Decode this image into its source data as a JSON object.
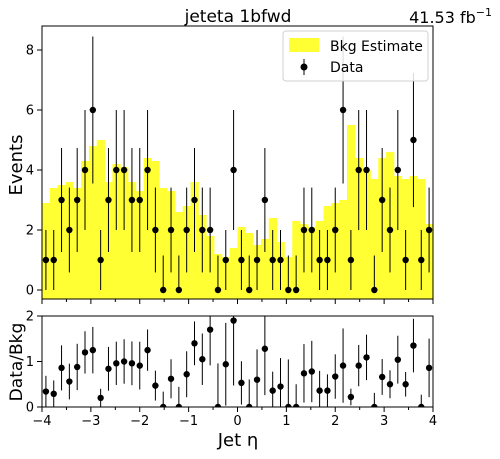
{
  "chart_data": [
    {
      "type": "bar",
      "panel": "main",
      "title": "jeteta  1bfwd",
      "lumi_label": "41.53 fb",
      "lumi_label_sup": "−1",
      "ylabel": "Events",
      "xlim": [
        -4,
        4
      ],
      "ylim": [
        -0.3,
        8.8
      ],
      "yticks": [
        "0",
        "2",
        "4",
        "6",
        "8"
      ],
      "yticks_values": [
        0,
        2,
        4,
        6,
        8
      ],
      "legend": {
        "placement": "top-right",
        "entries": [
          "Bkg Estimate",
          "Data"
        ]
      },
      "colors": {
        "bkg": "#ffff33",
        "data": "#000000"
      },
      "series": [
        {
          "name": "Bkg Estimate",
          "style": "step-filled",
          "bin_edges": [
            -4.0,
            -3.84,
            -3.68,
            -3.52,
            -3.36,
            -3.2,
            -3.04,
            -2.88,
            -2.72,
            -2.56,
            -2.4,
            -2.24,
            -2.08,
            -1.92,
            -1.76,
            -1.6,
            -1.44,
            -1.28,
            -1.12,
            -0.96,
            -0.8,
            -0.64,
            -0.48,
            -0.32,
            -0.16,
            0.0,
            0.16,
            0.32,
            0.48,
            0.64,
            0.8,
            0.96,
            1.12,
            1.28,
            1.44,
            1.6,
            1.76,
            1.92,
            2.08,
            2.24,
            2.4,
            2.56,
            2.72,
            2.88,
            3.04,
            3.2,
            3.36,
            3.52,
            3.68,
            3.84,
            4.0
          ],
          "values": [
            2.9,
            3.4,
            3.5,
            3.6,
            3.4,
            4.3,
            4.8,
            5.0,
            3.6,
            4.2,
            4.1,
            3.6,
            3.3,
            4.4,
            4.3,
            3.4,
            3.3,
            2.6,
            2.8,
            3.6,
            2.5,
            1.8,
            1.2,
            1.1,
            1.4,
            2.1,
            1.9,
            1.5,
            1.7,
            2.4,
            1.6,
            1.1,
            2.3,
            2.2,
            2.1,
            2.3,
            2.8,
            2.9,
            3.0,
            5.5,
            4.4,
            4.0,
            3.7,
            4.4,
            4.6,
            3.8,
            3.7,
            3.8,
            3.7,
            2.2
          ]
        },
        {
          "name": "Data",
          "style": "errorbar",
          "x": [
            -3.92,
            -3.76,
            -3.6,
            -3.44,
            -3.28,
            -3.12,
            -2.96,
            -2.8,
            -2.64,
            -2.48,
            -2.32,
            -2.16,
            -2.0,
            -1.84,
            -1.68,
            -1.52,
            -1.36,
            -1.2,
            -1.04,
            -0.88,
            -0.72,
            -0.56,
            -0.4,
            -0.24,
            -0.08,
            0.08,
            0.24,
            0.4,
            0.56,
            0.72,
            0.88,
            1.04,
            1.2,
            1.36,
            1.52,
            1.68,
            1.84,
            2.0,
            2.16,
            2.32,
            2.48,
            2.64,
            2.8,
            2.96,
            3.12,
            3.28,
            3.44,
            3.6,
            3.76,
            3.92
          ],
          "y": [
            1,
            1,
            3,
            2,
            3,
            4,
            6,
            1,
            3,
            4,
            4,
            3,
            3,
            4,
            2,
            0,
            2,
            0,
            2,
            3,
            2,
            2,
            0,
            1,
            4,
            1,
            0,
            1,
            3,
            1,
            1,
            0,
            0,
            2,
            2,
            1,
            1,
            2,
            6,
            1,
            4,
            4,
            0,
            3,
            2,
            4,
            1,
            5,
            1,
            2
          ]
        }
      ]
    },
    {
      "type": "scatter",
      "panel": "ratio",
      "xlabel": "Jet η",
      "ylabel": "Data/Bkg",
      "xlim": [
        -4,
        4
      ],
      "ylim": [
        0,
        2
      ],
      "xticks": [
        "−4",
        "−3",
        "−2",
        "−1",
        "0",
        "1",
        "2",
        "3",
        "4"
      ],
      "xticks_values": [
        -4,
        -3,
        -2,
        -1,
        0,
        1,
        2,
        3,
        4
      ],
      "yticks": [
        "0",
        "1",
        "2"
      ],
      "yticks_values": [
        0,
        1,
        2
      ],
      "series": [
        {
          "name": "",
          "x": [
            -3.92,
            -3.76,
            -3.6,
            -3.44,
            -3.28,
            -3.12,
            -2.96,
            -2.8,
            -2.64,
            -2.48,
            -2.32,
            -2.16,
            -2.0,
            -1.84,
            -1.68,
            -1.52,
            -1.36,
            -1.2,
            -1.04,
            -0.88,
            -0.72,
            -0.56,
            -0.4,
            -0.24,
            -0.08,
            0.08,
            0.24,
            0.4,
            0.56,
            0.72,
            0.88,
            1.04,
            1.2,
            1.36,
            1.52,
            1.68,
            1.84,
            2.0,
            2.16,
            2.32,
            2.48,
            2.64,
            2.8,
            2.96,
            3.12,
            3.28,
            3.44,
            3.6,
            3.76,
            3.92
          ],
          "y": [
            0.34,
            0.29,
            0.86,
            0.56,
            0.88,
            1.2,
            1.25,
            0.2,
            0.84,
            0.96,
            1.0,
            0.96,
            0.91,
            1.25,
            0.47,
            0.0,
            0.62,
            0.0,
            0.72,
            1.4,
            1.05,
            1.7,
            0.0,
            0.94,
            1.9,
            0.53,
            0.0,
            0.6,
            1.28,
            0.36,
            0.45,
            0.0,
            0.0,
            0.74,
            0.78,
            0.36,
            0.36,
            0.67,
            0.91,
            0.22,
            0.91,
            1.09,
            0.0,
            0.66,
            0.5,
            1.04,
            0.5,
            1.35,
            0.0,
            0.86
          ]
        }
      ]
    }
  ]
}
